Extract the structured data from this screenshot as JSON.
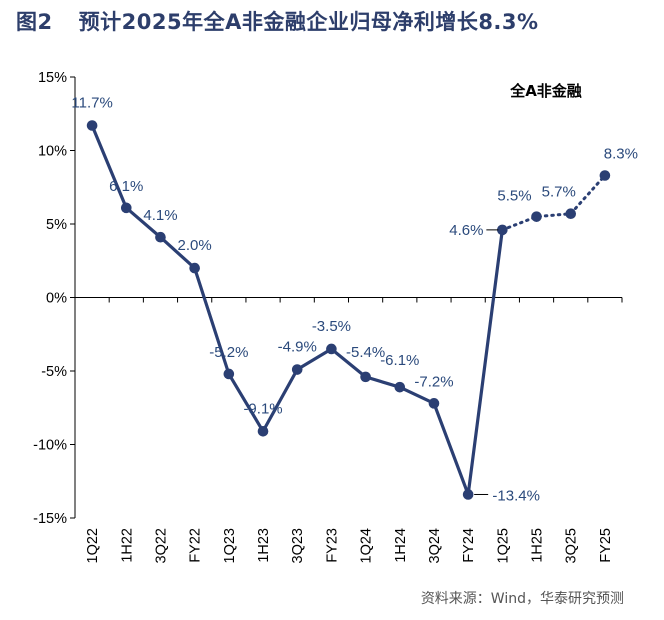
{
  "figure": {
    "number": "图2",
    "title": "预计2025年全A非金融企业归母净利增长8.3%",
    "source": "资料来源：Wind，华泰研究预测"
  },
  "colors": {
    "series": "#2b3f73",
    "label": "#2b4a7c",
    "axis": "#000000"
  },
  "chart_data": {
    "type": "line",
    "title": "预计2025年全A非金融企业归母净利增长8.3%",
    "xlabel": "",
    "ylabel": "",
    "ylim": [
      -15,
      15
    ],
    "yticks": [
      15,
      10,
      5,
      0,
      -5,
      -10,
      -15
    ],
    "ytick_labels": [
      "15%",
      "10%",
      "5%",
      "0%",
      "-5%",
      "-10%",
      "-15%"
    ],
    "grid": false,
    "legend_position": "top-right",
    "categories": [
      "1Q22",
      "1H22",
      "3Q22",
      "FY22",
      "1Q23",
      "1H23",
      "3Q23",
      "FY23",
      "1Q24",
      "1H24",
      "3Q24",
      "FY24",
      "1Q25",
      "1H25",
      "3Q25",
      "FY25"
    ],
    "series": [
      {
        "name": "全A非金融",
        "values": [
          11.7,
          6.1,
          4.1,
          2.0,
          -5.2,
          -9.1,
          -4.9,
          -3.5,
          -5.4,
          -6.1,
          -7.2,
          -13.4,
          4.6,
          5.5,
          5.7,
          8.3
        ],
        "labels": [
          "11.7%",
          "6.1%",
          "4.1%",
          "2.0%",
          "-5.2%",
          "-9.1%",
          "-4.9%",
          "-3.5%",
          "-5.4%",
          "-6.1%",
          "-7.2%",
          "-13.4%",
          "4.6%",
          "5.5%",
          "5.7%",
          "8.3%"
        ],
        "forecast_from_index": 12
      }
    ]
  }
}
